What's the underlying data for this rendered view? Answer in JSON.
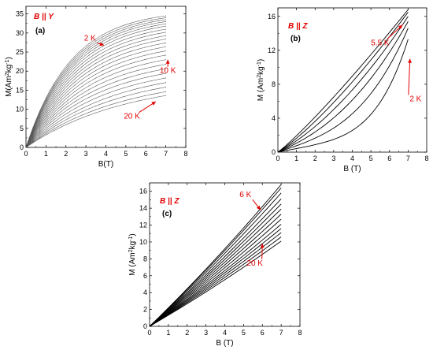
{
  "colors": {
    "annotation": "#e00000",
    "curve_a": "#555555",
    "curve_bc": "#000000"
  },
  "chart_data": [
    {
      "type": "line",
      "panel_label": "(a)",
      "condition": "B || Y",
      "xlabel": "B(T)",
      "ylabel": "M(Am^2kg^-1)",
      "xlim": [
        0,
        8
      ],
      "ylim": [
        0,
        37
      ],
      "xticks": [
        0,
        1,
        2,
        3,
        4,
        5,
        6,
        7,
        8
      ],
      "yticks": [
        0,
        5,
        10,
        15,
        20,
        25,
        30,
        35
      ],
      "grid": false,
      "curve_color": "#555555",
      "curve_shape": "saturating",
      "x_end": 7,
      "series_endpoints": [
        34.5,
        34.0,
        33.5,
        33.0,
        32.4,
        31.8,
        31.0,
        30.2,
        29.3,
        28.4,
        27.4,
        26.4,
        25.3,
        24.2,
        23.0,
        21.8,
        20.6,
        19.4,
        18.2,
        17.0,
        15.8,
        14.6,
        13.6
      ],
      "series_init_slopes": [
        16.0,
        15.5,
        15.0,
        14.5,
        14.0,
        13.4,
        12.8,
        12.2,
        11.6,
        11.0,
        10.4,
        9.8,
        9.2,
        8.6,
        8.0,
        7.4,
        6.8,
        6.2,
        5.6,
        5.0,
        4.5,
        4.0,
        3.6
      ],
      "annotations": [
        {
          "text": "2 K",
          "x": 3.2,
          "y": 28.0,
          "point_x": 3.9,
          "point_y": 26.8
        },
        {
          "text": "10 K",
          "x": 7.1,
          "y": 19.5,
          "point_x": 7.1,
          "point_y": 23.0
        },
        {
          "text": "20 K",
          "x": 5.3,
          "y": 7.5,
          "point_x": 6.5,
          "point_y": 12.0
        }
      ]
    },
    {
      "type": "line",
      "panel_label": "(b)",
      "condition": "B || Z",
      "xlabel": "B (T)",
      "ylabel": "M (Am^2kg^-1)",
      "xlim": [
        0,
        8
      ],
      "ylim": [
        0,
        17
      ],
      "xticks": [
        0,
        1,
        2,
        3,
        4,
        5,
        6,
        7,
        8
      ],
      "yticks": [
        0,
        4,
        8,
        12,
        16
      ],
      "grid": false,
      "curve_color": "#000000",
      "curve_shape": "convex",
      "x_end": 7,
      "series_endpoints": [
        16.8,
        16.5,
        16.0,
        15.4,
        14.6,
        13.3
      ],
      "series_exponents": [
        1.3,
        1.55,
        1.9,
        2.4,
        3.2,
        4.4
      ],
      "annotations": [
        {
          "text": "5.5 K",
          "x": 5.5,
          "y": 12.6,
          "point_x": 6.7,
          "point_y": 15.0
        },
        {
          "text": "2 K",
          "x": 7.4,
          "y": 6.0,
          "point_x": 7.1,
          "point_y": 11.0
        }
      ]
    },
    {
      "type": "line",
      "panel_label": "(c)",
      "condition": "B || Z",
      "xlabel": "B (T)",
      "ylabel": "M (Am^2kg^-1)",
      "xlim": [
        0,
        8
      ],
      "ylim": [
        0,
        17
      ],
      "xticks": [
        0,
        1,
        2,
        3,
        4,
        5,
        6,
        7,
        8
      ],
      "yticks": [
        0,
        2,
        4,
        6,
        8,
        10,
        12,
        14,
        16
      ],
      "grid": false,
      "curve_color": "#000000",
      "curve_shape": "near-linear",
      "x_end": 7,
      "series_endpoints": [
        16.8,
        16.4,
        15.8,
        15.1,
        14.5,
        13.9,
        13.3,
        12.7,
        12.1,
        11.6,
        11.1,
        10.6,
        10.1
      ],
      "annotations": [
        {
          "text": "6 K",
          "x": 5.1,
          "y": 15.3,
          "point_x": 5.9,
          "point_y": 13.8
        },
        {
          "text": "20 K",
          "x": 5.6,
          "y": 7.2,
          "point_x": 6.0,
          "point_y": 9.8
        }
      ]
    }
  ]
}
